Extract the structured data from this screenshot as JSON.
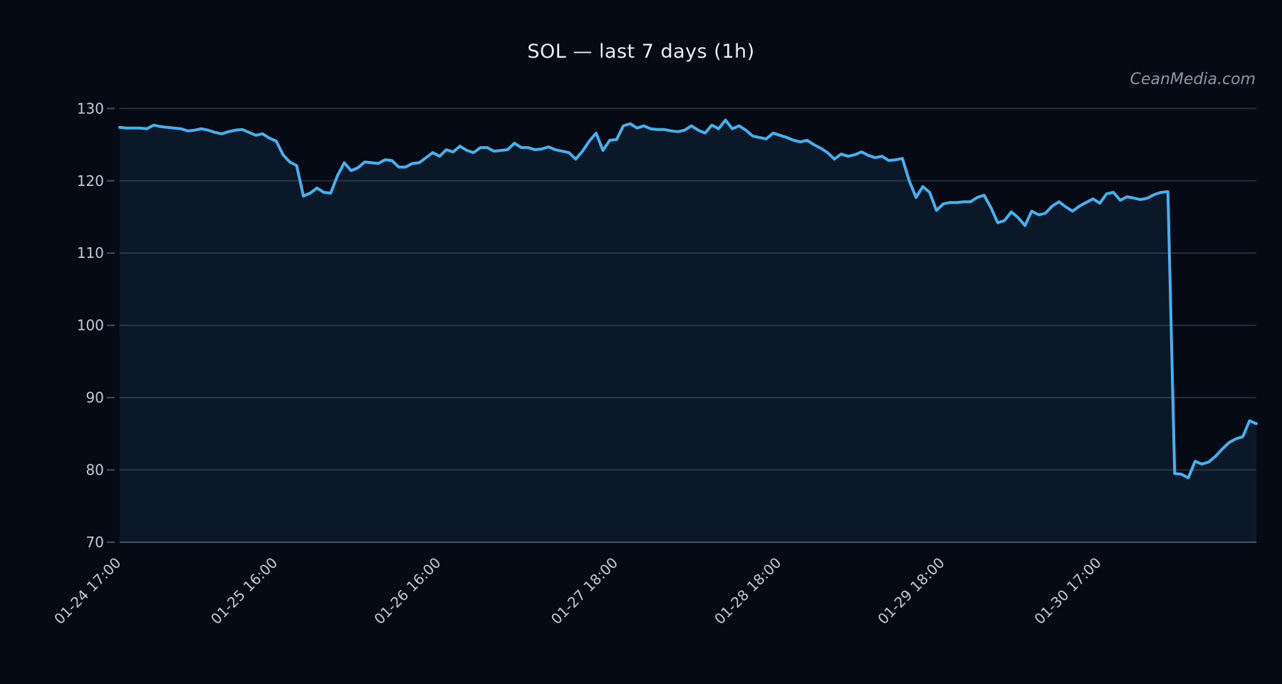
{
  "chart": {
    "title": "SOL — last 7 days (1h)",
    "watermark": "CeanMedia.com"
  },
  "chart_data": {
    "type": "area",
    "title": "SOL — last 7 days (1h)",
    "watermark": "CeanMedia.com",
    "xlabel": "",
    "ylabel": "",
    "grid": true,
    "legend": "none",
    "ylim": [
      70,
      131.5
    ],
    "y_ticks": [
      130,
      120,
      110,
      100,
      90,
      80,
      70
    ],
    "x_ticks": [
      {
        "hour": 0,
        "label": "01-24 17:00"
      },
      {
        "hour": 23,
        "label": "01-25 16:00"
      },
      {
        "hour": 47,
        "label": "01-26 16:00"
      },
      {
        "hour": 73,
        "label": "01-27 18:00"
      },
      {
        "hour": 97,
        "label": "01-28 18:00"
      },
      {
        "hour": 121,
        "label": "01-29 18:00"
      },
      {
        "hour": 144,
        "label": "01-30 17:00"
      }
    ],
    "line_color": "#46b1ef",
    "fill_color": "rgba(70,177,239,0.085)",
    "grid_color": "rgba(150,165,190,0.25)",
    "spine_color": "rgba(150,165,190,0.45)",
    "tick_label_color": "#c4c9d4",
    "background": "#050a15",
    "values": [
      127.4,
      127.3,
      127.3,
      127.3,
      127.2,
      127.7,
      127.5,
      127.4,
      127.3,
      127.2,
      126.9,
      127.0,
      127.2,
      127.0,
      126.7,
      126.5,
      126.8,
      127.0,
      127.1,
      126.7,
      126.3,
      126.5,
      125.9,
      125.5,
      123.6,
      122.6,
      122.1,
      117.9,
      118.3,
      119.0,
      118.4,
      118.3,
      120.7,
      122.5,
      121.4,
      121.8,
      122.6,
      122.5,
      122.4,
      122.9,
      122.8,
      121.9,
      121.9,
      122.4,
      122.5,
      123.2,
      123.9,
      123.4,
      124.3,
      124.0,
      124.8,
      124.2,
      123.9,
      124.6,
      124.6,
      124.1,
      124.2,
      124.3,
      125.2,
      124.6,
      124.6,
      124.3,
      124.4,
      124.7,
      124.3,
      124.1,
      123.9,
      123.0,
      124.1,
      125.5,
      126.6,
      124.2,
      125.6,
      125.7,
      127.6,
      127.9,
      127.3,
      127.6,
      127.2,
      127.1,
      127.1,
      126.9,
      126.8,
      127.0,
      127.6,
      127.0,
      126.6,
      127.7,
      127.2,
      128.4,
      127.2,
      127.6,
      127.0,
      126.2,
      126.0,
      125.8,
      126.6,
      126.3,
      126.0,
      125.6,
      125.4,
      125.6,
      125.0,
      124.5,
      123.9,
      123.0,
      123.7,
      123.4,
      123.6,
      124.0,
      123.5,
      123.2,
      123.4,
      122.8,
      122.9,
      123.1,
      120.0,
      117.7,
      119.2,
      118.4,
      115.9,
      116.8,
      117.0,
      117.0,
      117.1,
      117.1,
      117.7,
      118.0,
      116.3,
      114.2,
      114.5,
      115.7,
      114.9,
      113.8,
      115.8,
      115.3,
      115.5,
      116.5,
      117.1,
      116.4,
      115.8,
      116.5,
      117.0,
      117.5,
      116.9,
      118.2,
      118.4,
      117.3,
      117.8,
      117.6,
      117.4,
      117.6,
      118.1,
      118.4,
      118.5,
      79.5,
      79.4,
      78.9,
      81.2,
      80.8,
      81.1,
      81.9,
      82.9,
      83.8,
      84.3,
      84.6,
      86.8,
      86.4
    ]
  }
}
